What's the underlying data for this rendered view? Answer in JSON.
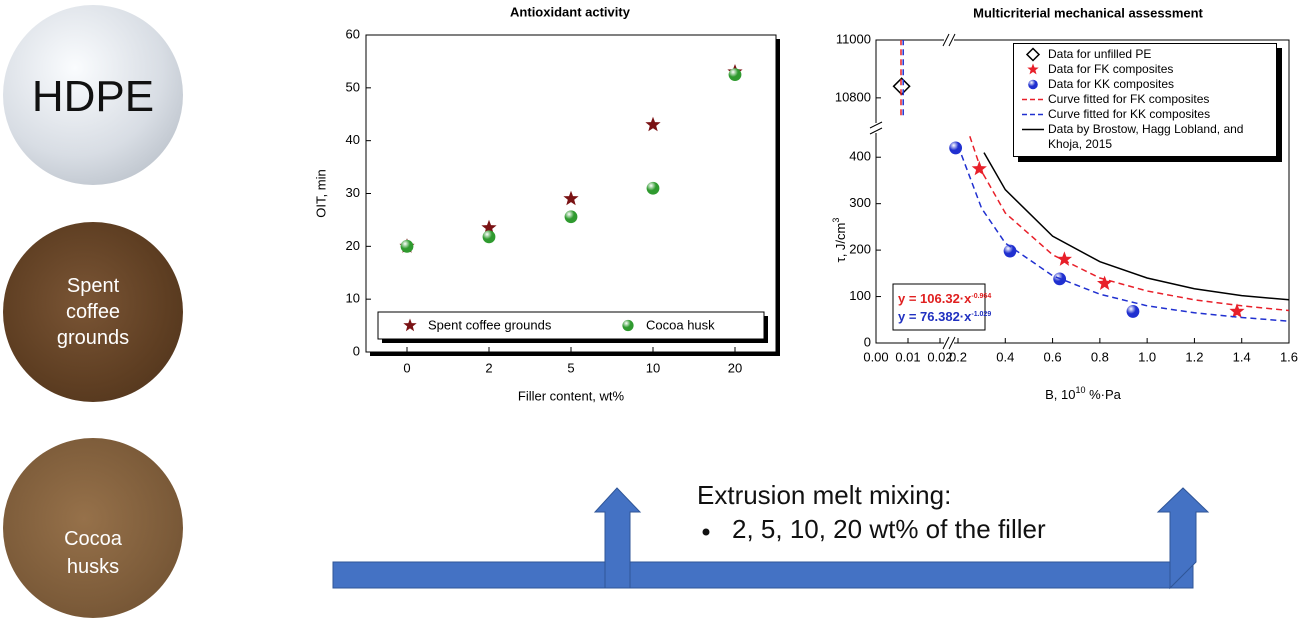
{
  "images": [
    {
      "label": "HDPE"
    },
    {
      "label": "Spent coffee grounds"
    },
    {
      "label": "Cocoa husks"
    }
  ],
  "process": {
    "title": "Extrusion melt mixing:",
    "items": [
      "2, 5, 10, 20 wt% of the filler"
    ]
  },
  "chart_data": [
    {
      "type": "scatter",
      "title": "Antioxidant activity",
      "xlabel": "Filler content, wt%",
      "ylabel": "OIT, min",
      "categories": [
        "0",
        "2",
        "5",
        "10",
        "20"
      ],
      "series": [
        {
          "name": "Spent coffee grounds",
          "color": "#7a1214",
          "marker": "star",
          "values": [
            20,
            23.5,
            29,
            43,
            53
          ]
        },
        {
          "name": "Cocoa husk",
          "color": "#2f9a2f",
          "marker": "sphere",
          "values": [
            20,
            21.8,
            25.6,
            31,
            52.5
          ]
        }
      ],
      "ylim": [
        0,
        60
      ],
      "yticks": [
        0,
        10,
        20,
        30,
        40,
        50,
        60
      ],
      "legend": "bottom"
    },
    {
      "type": "scatter",
      "title": "Multicriterial mechanical assessment",
      "xlabel": [
        {
          "text": "B, 10",
          "sup": false
        },
        {
          "text": "10",
          "sup": true
        },
        {
          "text": " %·Pa",
          "sup": false
        }
      ],
      "ylabel": [
        {
          "text": "τ, J/cm",
          "sup": false
        },
        {
          "text": "3",
          "sup": true
        }
      ],
      "xlim": [
        0,
        1.6
      ],
      "xbreak": [
        0.02,
        0.2
      ],
      "xticks": [
        {
          "value": 0,
          "label": "0.00"
        },
        0.01,
        0.02,
        0.2,
        0.4,
        0.6,
        0.8,
        {
          "value": 1,
          "label": "1.0"
        },
        1.2,
        1.4,
        1.6
      ],
      "ylim": [
        0,
        11000
      ],
      "ybreak": [
        450,
        10720
      ],
      "yticks": [
        0,
        100,
        200,
        300,
        400,
        10800,
        11000
      ],
      "series": [
        {
          "name": "Data for unfilled PE",
          "color": "#000000",
          "marker": "diamond",
          "x": [
            0.008
          ],
          "values": [
            10840
          ]
        },
        {
          "name": "Data for FK composites",
          "color": "#e8202a",
          "marker": "star",
          "x": [
            0.29,
            0.65,
            0.82,
            1.38
          ],
          "values": [
            375,
            180,
            128,
            68
          ]
        },
        {
          "name": "Data for KK composites",
          "color": "#2030d0",
          "marker": "sphere",
          "x": [
            0.19,
            0.42,
            0.63,
            0.94
          ],
          "values": [
            420,
            198,
            138,
            68
          ]
        },
        {
          "name": "Curve fitted for FK composites",
          "color": "#e8202a",
          "marker": "line",
          "dash": true,
          "x": [
            0.0078,
            0.0078,
            0.0078,
            0.25,
            0.3,
            0.4,
            0.6,
            0.8,
            1.0,
            1.2,
            1.4,
            1.6
          ],
          "values": [
            10740,
            11000,
            null,
            445,
            370,
            280,
            190,
            140,
            112,
            93,
            80,
            70
          ]
        },
        {
          "name": "Curve fitted for KK composites",
          "color": "#2030d0",
          "marker": "line",
          "dash": true,
          "x": [
            0.0085,
            0.0085,
            0.0085,
            0.2,
            0.3,
            0.4,
            0.6,
            0.8,
            1.0,
            1.2,
            1.4,
            1.6
          ],
          "values": [
            10740,
            11000,
            null,
            425,
            290,
            215,
            145,
            105,
            80,
            65,
            55,
            47
          ]
        },
        {
          "name": "Data by Brostow, Hagg Lobland, and Khoja, 2015",
          "color": "#000000",
          "marker": "line",
          "dash": false,
          "x": [
            0.31,
            0.4,
            0.6,
            0.8,
            1.0,
            1.2,
            1.4,
            1.6
          ],
          "values": [
            410,
            330,
            230,
            175,
            140,
            117,
            102,
            93
          ]
        }
      ],
      "equations": [
        {
          "text": "y = 106.32·x",
          "exponent": "-0.964",
          "color": "#e02020"
        },
        {
          "text": "y = 76.382·x",
          "exponent": "-1.029",
          "color": "#2030c0"
        }
      ],
      "legend": "top right"
    }
  ]
}
